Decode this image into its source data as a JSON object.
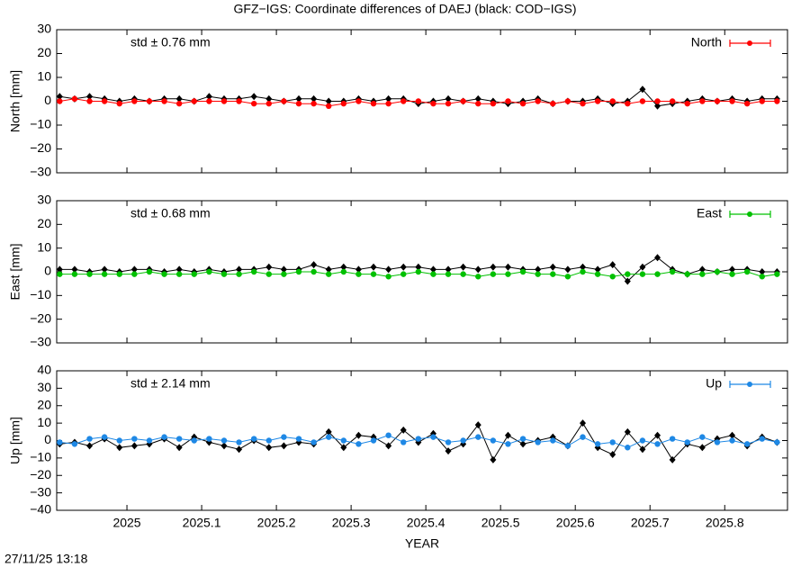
{
  "timestamp": "27/11/25 13:18",
  "chart_data": [
    {
      "type": "line",
      "title": "GFZ−IGS: Coordinate differences of DAEJ (black: COD−IGS)",
      "ylabel": "North [mm]",
      "annotation": "std ± 0.76 mm",
      "legend": "top-right",
      "x": [
        2024.91,
        2024.93,
        2024.95,
        2024.97,
        2024.99,
        2025.01,
        2025.03,
        2025.05,
        2025.07,
        2025.09,
        2025.11,
        2025.13,
        2025.15,
        2025.17,
        2025.19,
        2025.21,
        2025.23,
        2025.25,
        2025.27,
        2025.29,
        2025.31,
        2025.33,
        2025.35,
        2025.37,
        2025.39,
        2025.41,
        2025.43,
        2025.45,
        2025.47,
        2025.49,
        2025.51,
        2025.53,
        2025.55,
        2025.57,
        2025.59,
        2025.61,
        2025.63,
        2025.65,
        2025.67,
        2025.69,
        2025.71,
        2025.73,
        2025.75,
        2025.77,
        2025.79,
        2025.81,
        2025.83,
        2025.85,
        2025.87
      ],
      "xlim": [
        2024.906,
        2025.884
      ],
      "xticks": [
        2025,
        2025.1,
        2025.2,
        2025.3,
        2025.4,
        2025.5,
        2025.6,
        2025.7,
        2025.8
      ],
      "ylim": [
        -30,
        30
      ],
      "yticks": [
        {
          "value": -30,
          "label": "−30"
        },
        {
          "value": -20,
          "label": "−20"
        },
        {
          "value": -10,
          "label": "−10"
        },
        0,
        10,
        20,
        30
      ],
      "series": [
        {
          "color": "#000000",
          "values": [
            2,
            1,
            2,
            1,
            0,
            1,
            0,
            1,
            1,
            0,
            2,
            1,
            1,
            2,
            1,
            0,
            1,
            1,
            0,
            0,
            1,
            0,
            1,
            1,
            -1,
            0,
            1,
            0,
            1,
            0,
            -1,
            0,
            1,
            -1,
            0,
            0,
            1,
            -1,
            0,
            5,
            -2,
            -1,
            0,
            1,
            0,
            1,
            0,
            1,
            1
          ]
        },
        {
          "name": "North",
          "color": "#ff0000",
          "values": [
            0,
            1,
            0,
            0,
            -1,
            0,
            0,
            0,
            -1,
            0,
            0,
            0,
            0,
            -1,
            -1,
            0,
            -1,
            -1,
            -2,
            -1,
            0,
            -1,
            -1,
            0,
            0,
            -1,
            -1,
            0,
            -1,
            -1,
            0,
            -1,
            0,
            -1,
            0,
            -1,
            0,
            0,
            -1,
            0,
            0,
            0,
            -1,
            0,
            0,
            0,
            -1,
            0,
            0
          ]
        }
      ]
    },
    {
      "type": "line",
      "ylabel": "East [mm]",
      "annotation": "std ± 0.68 mm",
      "legend": "top-right",
      "x": [
        2024.91,
        2024.93,
        2024.95,
        2024.97,
        2024.99,
        2025.01,
        2025.03,
        2025.05,
        2025.07,
        2025.09,
        2025.11,
        2025.13,
        2025.15,
        2025.17,
        2025.19,
        2025.21,
        2025.23,
        2025.25,
        2025.27,
        2025.29,
        2025.31,
        2025.33,
        2025.35,
        2025.37,
        2025.39,
        2025.41,
        2025.43,
        2025.45,
        2025.47,
        2025.49,
        2025.51,
        2025.53,
        2025.55,
        2025.57,
        2025.59,
        2025.61,
        2025.63,
        2025.65,
        2025.67,
        2025.69,
        2025.71,
        2025.73,
        2025.75,
        2025.77,
        2025.79,
        2025.81,
        2025.83,
        2025.85,
        2025.87
      ],
      "xlim": [
        2024.906,
        2025.884
      ],
      "xticks": [
        2025,
        2025.1,
        2025.2,
        2025.3,
        2025.4,
        2025.5,
        2025.6,
        2025.7,
        2025.8
      ],
      "ylim": [
        -30,
        30
      ],
      "yticks": [
        {
          "value": -30,
          "label": "−30"
        },
        {
          "value": -20,
          "label": "−20"
        },
        {
          "value": -10,
          "label": "−10"
        },
        0,
        10,
        20,
        30
      ],
      "series": [
        {
          "color": "#000000",
          "values": [
            1,
            1,
            0,
            1,
            0,
            1,
            1,
            0,
            1,
            0,
            1,
            0,
            1,
            1,
            2,
            1,
            1,
            3,
            1,
            2,
            1,
            2,
            1,
            2,
            2,
            1,
            1,
            2,
            1,
            2,
            2,
            1,
            1,
            2,
            1,
            2,
            1,
            3,
            -4,
            2,
            6,
            1,
            -1,
            1,
            0,
            1,
            1,
            0,
            0
          ]
        },
        {
          "name": "East",
          "color": "#00c000",
          "values": [
            -1,
            -1,
            -1,
            -1,
            -1,
            -1,
            0,
            -1,
            -1,
            -1,
            0,
            -1,
            -1,
            0,
            -1,
            -1,
            0,
            0,
            -1,
            0,
            -1,
            -1,
            -2,
            -1,
            0,
            -1,
            -1,
            -1,
            -2,
            -1,
            -1,
            0,
            -1,
            -1,
            -2,
            0,
            -1,
            -2,
            -1,
            -1,
            -1,
            0,
            -1,
            -1,
            0,
            -1,
            0,
            -2,
            -1
          ]
        }
      ]
    },
    {
      "type": "line",
      "ylabel": "Up [mm]",
      "annotation": "std ± 2.14 mm",
      "legend": "top-right",
      "xlabel": "YEAR",
      "x": [
        2024.91,
        2024.93,
        2024.95,
        2024.97,
        2024.99,
        2025.01,
        2025.03,
        2025.05,
        2025.07,
        2025.09,
        2025.11,
        2025.13,
        2025.15,
        2025.17,
        2025.19,
        2025.21,
        2025.23,
        2025.25,
        2025.27,
        2025.29,
        2025.31,
        2025.33,
        2025.35,
        2025.37,
        2025.39,
        2025.41,
        2025.43,
        2025.45,
        2025.47,
        2025.49,
        2025.51,
        2025.53,
        2025.55,
        2025.57,
        2025.59,
        2025.61,
        2025.63,
        2025.65,
        2025.67,
        2025.69,
        2025.71,
        2025.73,
        2025.75,
        2025.77,
        2025.79,
        2025.81,
        2025.83,
        2025.85,
        2025.87
      ],
      "xlim": [
        2024.906,
        2025.884
      ],
      "xticks": [
        2025,
        2025.1,
        2025.2,
        2025.3,
        2025.4,
        2025.5,
        2025.6,
        2025.7,
        2025.8
      ],
      "ylim": [
        -40,
        40
      ],
      "yticks": [
        {
          "value": -40,
          "label": "−40"
        },
        {
          "value": -30,
          "label": "−30"
        },
        {
          "value": -20,
          "label": "−20"
        },
        {
          "value": -10,
          "label": "−10"
        },
        0,
        10,
        20,
        30,
        40
      ],
      "series": [
        {
          "color": "#000000",
          "values": [
            -2,
            -1,
            -3,
            1,
            -4,
            -3,
            -2,
            1,
            -4,
            2,
            -1,
            -3,
            -5,
            0,
            -4,
            -3,
            -1,
            -2,
            5,
            -4,
            3,
            2,
            -3,
            6,
            -1,
            4,
            -6,
            -2,
            9,
            -11,
            3,
            -2,
            0,
            2,
            -3,
            10,
            -4,
            -8,
            5,
            -5,
            3,
            -11,
            -2,
            -4,
            1,
            3,
            -3,
            2,
            -1
          ]
        },
        {
          "name": "Up",
          "color": "#1e88e5",
          "values": [
            -1,
            -2,
            1,
            2,
            0,
            1,
            0,
            2,
            1,
            0,
            1,
            0,
            -1,
            1,
            0,
            2,
            1,
            -1,
            2,
            0,
            -2,
            0,
            3,
            -1,
            1,
            2,
            -1,
            0,
            2,
            0,
            -2,
            1,
            -1,
            0,
            -3,
            2,
            -2,
            -1,
            -4,
            0,
            -2,
            1,
            -1,
            2,
            -1,
            0,
            -2,
            1,
            -1
          ]
        }
      ]
    }
  ]
}
